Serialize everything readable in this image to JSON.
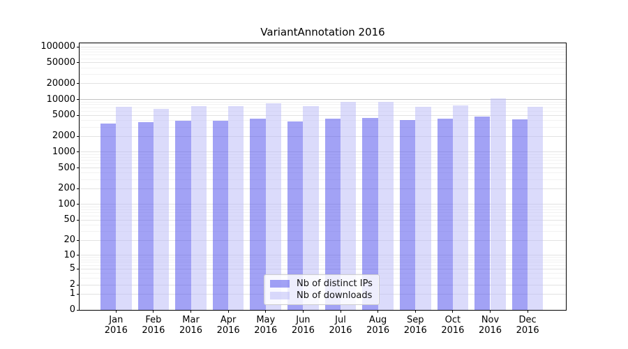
{
  "chart_data": {
    "type": "bar",
    "title": "VariantAnnotation 2016",
    "categories": [
      "Jan 2016",
      "Feb 2016",
      "Mar 2016",
      "Apr 2016",
      "May 2016",
      "Jun 2016",
      "Jul 2016",
      "Aug 2016",
      "Sep 2016",
      "Oct 2016",
      "Nov 2016",
      "Dec 2016"
    ],
    "series": [
      {
        "name": "Nb of distinct IPs",
        "color": "rgba(77,77,235,0.52)",
        "values": [
          3450,
          3750,
          4000,
          3950,
          4300,
          3850,
          4350,
          4500,
          4050,
          4300,
          4700,
          4200
        ]
      },
      {
        "name": "Nb of downloads",
        "color": "rgba(184,184,247,0.5)",
        "values": [
          7300,
          6600,
          7500,
          7450,
          8500,
          7550,
          8950,
          9050,
          7350,
          7700,
          10500,
          7200
        ]
      }
    ],
    "xlabel": "",
    "ylabel": "",
    "y_scale": "log10(1+x)",
    "y_ticks": [
      0,
      1,
      2,
      5,
      10,
      20,
      50,
      100,
      200,
      500,
      1000,
      2000,
      5000,
      10000,
      20000,
      50000,
      100000
    ],
    "ylim": [
      0,
      100000
    ],
    "grid": "on",
    "emphasized_gridline": 10000,
    "legend_position": "lower center"
  }
}
